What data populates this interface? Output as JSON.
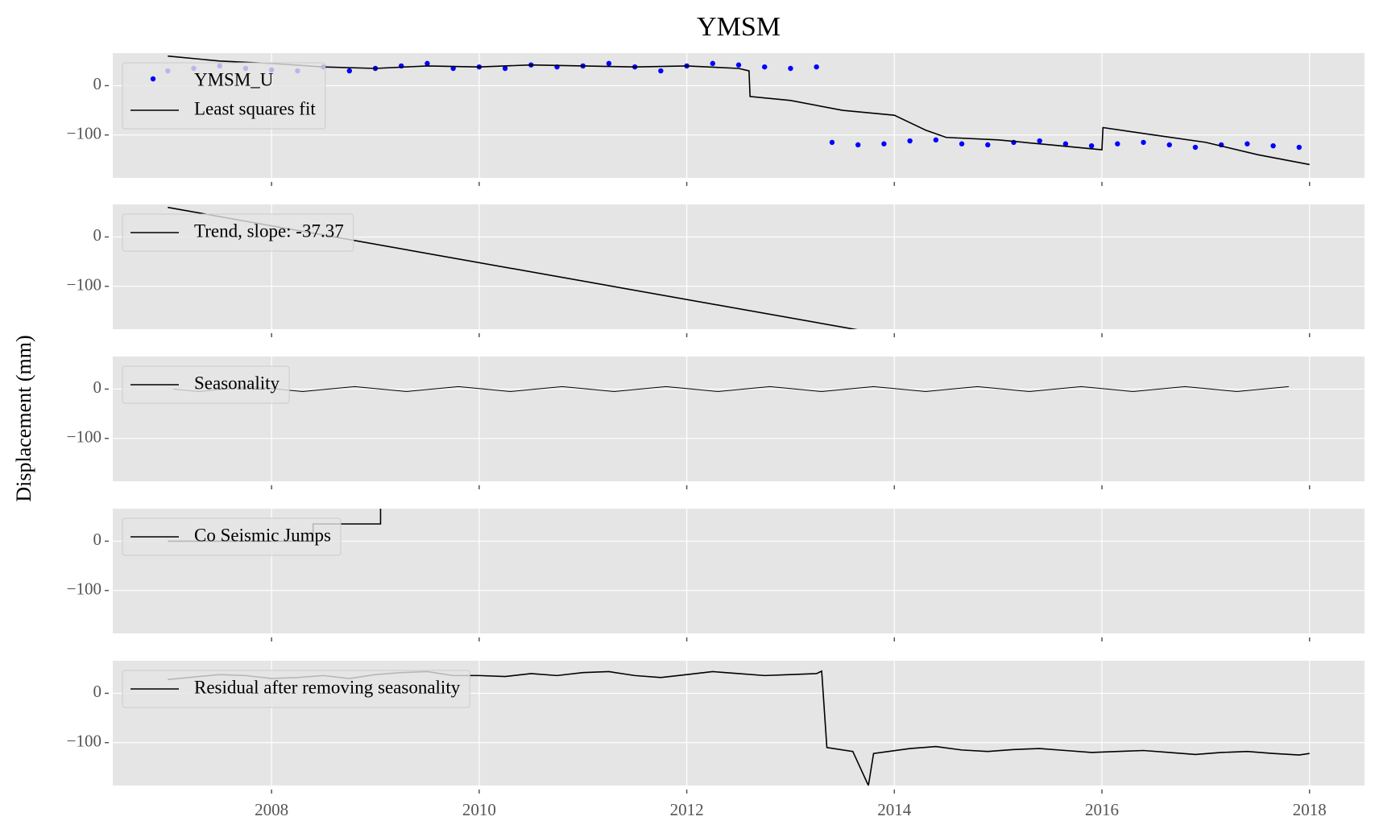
{
  "title": "YMSM",
  "ylabel": "Displacement (mm)",
  "chart_data": [
    {
      "type": "line",
      "xlim": [
        2006.47,
        2018.53
      ],
      "ylim": [
        -187,
        66
      ],
      "xticks": [
        2008,
        2010,
        2012,
        2014,
        2016,
        2018
      ],
      "yticks": [
        0,
        {
          "value": -100,
          "label": "−100"
        }
      ],
      "grid": true,
      "legend": "upper left",
      "series": [
        {
          "name": "YMSM_U",
          "type": "scatter",
          "color": "#0000ff",
          "x": [
            2007,
            2007.25,
            2007.5,
            2007.75,
            2008,
            2008.25,
            2008.5,
            2008.75,
            2009,
            2009.25,
            2009.5,
            2009.75,
            2010,
            2010.25,
            2010.5,
            2010.75,
            2011,
            2011.25,
            2011.5,
            2011.75,
            2012,
            2012.25,
            2012.5,
            2012.75,
            2013,
            2013.25,
            2013.4,
            2013.65,
            2013.9,
            2014.15,
            2014.4,
            2014.65,
            2014.9,
            2015.15,
            2015.4,
            2015.65,
            2015.9,
            2016.15,
            2016.4,
            2016.65,
            2016.9,
            2017.15,
            2017.4,
            2017.65,
            2017.9
          ],
          "values": [
            30,
            35,
            40,
            35,
            32,
            30,
            38,
            30,
            35,
            40,
            45,
            35,
            38,
            35,
            42,
            38,
            40,
            45,
            38,
            30,
            40,
            45,
            42,
            38,
            35,
            38,
            -115,
            -120,
            -118,
            -112,
            -110,
            -118,
            -120,
            -115,
            -112,
            -118,
            -122,
            -118,
            -115,
            -120,
            -125,
            -120,
            -118,
            -122,
            -125
          ]
        },
        {
          "name": "Least squares fit",
          "type": "line",
          "color": "#000000",
          "x": [
            2007,
            2007.5,
            2008,
            2008.5,
            2009,
            2009.5,
            2010,
            2010.5,
            2011,
            2011.5,
            2012,
            2012.5,
            2012.6,
            2012.61,
            2013,
            2013.5,
            2014,
            2014.3,
            2014.5,
            2015,
            2015.5,
            2016,
            2016.01,
            2016.5,
            2017,
            2017.5,
            2018
          ],
          "values": [
            60,
            50,
            45,
            38,
            35,
            40,
            38,
            42,
            40,
            38,
            40,
            35,
            30,
            -22,
            -30,
            -50,
            -60,
            -90,
            -105,
            -110,
            -120,
            -130,
            -85,
            -100,
            -115,
            -140,
            -160
          ]
        }
      ]
    },
    {
      "type": "line",
      "xlim": [
        2006.47,
        2018.53
      ],
      "ylim": [
        -187,
        66
      ],
      "xticks": [
        2008,
        2010,
        2012,
        2014,
        2016,
        2018
      ],
      "yticks": [
        0,
        {
          "value": -100,
          "label": "−100"
        }
      ],
      "grid": true,
      "legend": "upper left",
      "series": [
        {
          "name": "Trend, slope: -37.37",
          "color": "#000000",
          "x": [
            2007,
            2018
          ],
          "values": [
            60,
            -351
          ]
        }
      ]
    },
    {
      "type": "line",
      "xlim": [
        2006.47,
        2018.53
      ],
      "ylim": [
        -187,
        66
      ],
      "xticks": [
        2008,
        2010,
        2012,
        2014,
        2016,
        2018
      ],
      "yticks": [
        0,
        {
          "value": -100,
          "label": "−100"
        }
      ],
      "grid": true,
      "legend": "upper left",
      "series": [
        {
          "name": "Seasonality",
          "color": "#000000",
          "x": [
            2007.05,
            2007.3,
            2007.55,
            2007.8,
            2008.05,
            2008.3,
            2008.55,
            2008.8,
            2009.05,
            2009.3,
            2009.55,
            2009.8,
            2010.05,
            2010.3,
            2010.55,
            2010.8,
            2011.05,
            2011.3,
            2011.55,
            2011.8,
            2012.05,
            2012.3,
            2012.55,
            2012.8,
            2013.05,
            2013.3,
            2013.55,
            2013.8,
            2014.05,
            2014.3,
            2014.55,
            2014.8,
            2015.05,
            2015.3,
            2015.55,
            2015.8,
            2016.05,
            2016.3,
            2016.55,
            2016.8,
            2017.05,
            2017.3,
            2017.55,
            2017.8
          ],
          "values": [
            0,
            -5,
            0,
            5,
            0,
            -5,
            0,
            5,
            0,
            -5,
            0,
            5,
            0,
            -5,
            0,
            5,
            0,
            -5,
            0,
            5,
            0,
            -5,
            0,
            5,
            0,
            -5,
            0,
            5,
            0,
            -5,
            0,
            5,
            0,
            -5,
            0,
            5,
            0,
            -5,
            0,
            5,
            0,
            -5,
            0,
            5
          ]
        }
      ]
    },
    {
      "type": "line",
      "xlim": [
        2006.47,
        2018.53
      ],
      "ylim": [
        -187,
        66
      ],
      "xticks": [
        2008,
        2010,
        2012,
        2014,
        2016,
        2018
      ],
      "yticks": [
        0,
        {
          "value": -100,
          "label": "−100"
        }
      ],
      "grid": true,
      "legend": "upper left",
      "series": [
        {
          "name": "Co Seismic Jumps",
          "color": "#000000",
          "x": [
            2007,
            2008.4,
            2008.4,
            2009.05,
            2009.05
          ],
          "values": [
            0,
            0,
            35,
            35,
            100
          ]
        }
      ]
    },
    {
      "type": "line",
      "xlim": [
        2006.47,
        2018.53
      ],
      "ylim": [
        -187,
        66
      ],
      "xticks": [
        2008,
        2010,
        2012,
        2014,
        2016,
        2018
      ],
      "yticks": [
        0,
        {
          "value": -100,
          "label": "−100"
        }
      ],
      "grid": true,
      "legend": "upper left",
      "series": [
        {
          "name": "Residual after removing seasonality",
          "color": "#000000",
          "x": [
            2007,
            2007.25,
            2007.5,
            2007.75,
            2008,
            2008.25,
            2008.5,
            2008.75,
            2009,
            2009.25,
            2009.5,
            2009.75,
            2010,
            2010.25,
            2010.5,
            2010.75,
            2011,
            2011.25,
            2011.5,
            2011.75,
            2012,
            2012.25,
            2012.5,
            2012.75,
            2013,
            2013.25,
            2013.3,
            2013.35,
            2013.6,
            2013.75,
            2013.8,
            2014.15,
            2014.4,
            2014.65,
            2014.9,
            2015.15,
            2015.4,
            2015.65,
            2015.9,
            2016.15,
            2016.4,
            2016.65,
            2016.9,
            2017.15,
            2017.4,
            2017.65,
            2017.9,
            2018
          ],
          "values": [
            28,
            33,
            38,
            36,
            30,
            32,
            36,
            30,
            38,
            42,
            44,
            36,
            36,
            34,
            40,
            36,
            42,
            44,
            36,
            32,
            38,
            44,
            40,
            36,
            38,
            40,
            45,
            -110,
            -118,
            -187,
            -122,
            -112,
            -108,
            -115,
            -118,
            -114,
            -112,
            -116,
            -120,
            -118,
            -116,
            -120,
            -124,
            -120,
            -118,
            -122,
            -125,
            -122
          ]
        }
      ]
    }
  ]
}
